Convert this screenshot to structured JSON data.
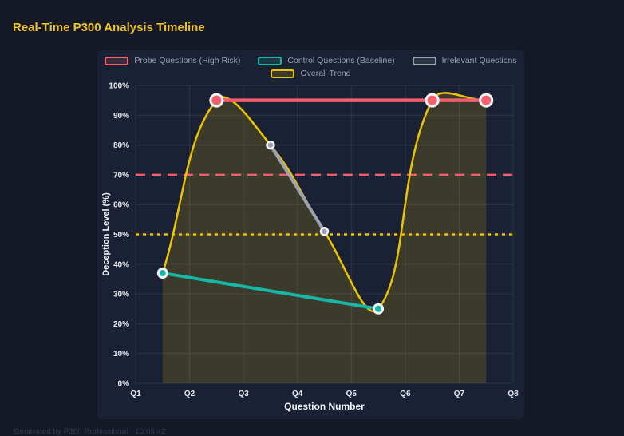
{
  "page": {
    "title": "Real-Time P300 Analysis Timeline",
    "footer": "Generated by P300 Professional · 10:05:42"
  },
  "colors": {
    "background": "#141827",
    "panel": "#1b2134",
    "title": "#f0c41e",
    "probe": "#f25f6d",
    "control": "#15b8a6",
    "irrelevant": "#9ca3af",
    "trend": "#ecc400",
    "legend_text": "#9aa1b4",
    "tick_text": "#e7eaf1",
    "grid": "rgba(255,255,255,0.085)",
    "area_fill": "rgba(236,196,0,0.16)",
    "point_border": "#f3f4f8"
  },
  "legend": {
    "items": [
      {
        "id": "probe",
        "label": "Probe Questions (High Risk)",
        "color": "#f25f6d"
      },
      {
        "id": "control",
        "label": "Control Questions (Baseline)",
        "color": "#15b8a6"
      },
      {
        "id": "irrelevant",
        "label": "Irrelevant Questions",
        "color": "#9ca3af"
      },
      {
        "id": "trend",
        "label": "Overall Trend",
        "color": "#ecc400"
      }
    ]
  },
  "chart_data": {
    "type": "line",
    "title": "Real-Time P300 Analysis Timeline",
    "xlabel": "Question Number",
    "ylabel": "Deception Level (%)",
    "x_ticks": [
      "Q1",
      "Q2",
      "Q3",
      "Q4",
      "Q5",
      "Q6",
      "Q7",
      "Q8"
    ],
    "y_ticks": [
      "0%",
      "10%",
      "20%",
      "30%",
      "40%",
      "50%",
      "60%",
      "70%",
      "80%",
      "90%",
      "100%"
    ],
    "xlim": [
      1,
      8
    ],
    "ylim": [
      0,
      100
    ],
    "grid": true,
    "legend_position": "top",
    "points": [
      {
        "x": 1.5,
        "value": 37,
        "category": "control"
      },
      {
        "x": 2.5,
        "value": 95,
        "category": "probe"
      },
      {
        "x": 3.5,
        "value": 80,
        "category": "irrelevant"
      },
      {
        "x": 4.5,
        "value": 51,
        "category": "irrelevant"
      },
      {
        "x": 5.5,
        "value": 25,
        "category": "control"
      },
      {
        "x": 6.5,
        "value": 95,
        "category": "probe"
      },
      {
        "x": 7.5,
        "value": 95,
        "category": "probe"
      }
    ],
    "series": [
      {
        "name": "Probe Questions (High Risk)",
        "color": "#f25f6d",
        "x": [
          2.5,
          6.5,
          7.5
        ],
        "values": [
          95,
          95,
          95
        ],
        "line_width": 4.5,
        "point_radius": 7.5,
        "smooth": false
      },
      {
        "name": "Control Questions (Baseline)",
        "color": "#15b8a6",
        "x": [
          1.5,
          5.5
        ],
        "values": [
          37,
          25
        ],
        "line_width": 4,
        "point_radius": 5.5,
        "smooth": false
      },
      {
        "name": "Irrelevant Questions",
        "color": "#9ca3af",
        "x": [
          3.5,
          4.5
        ],
        "values": [
          80,
          51
        ],
        "line_width": 4,
        "point_radius": 4.5,
        "smooth": false
      },
      {
        "name": "Overall Trend",
        "color": "#ecc400",
        "x": [
          1.5,
          2.5,
          3.5,
          4.5,
          5.5,
          6.5,
          7.5
        ],
        "values": [
          37,
          95,
          80,
          51,
          25,
          95,
          95
        ],
        "line_width": 2.5,
        "point_radius": 0,
        "smooth": true,
        "area_fill": true
      }
    ],
    "thresholds": [
      {
        "value": 70,
        "color": "#f25f6d",
        "style": "dashed"
      },
      {
        "value": 50,
        "color": "#ecc400",
        "style": "dotted"
      }
    ]
  }
}
